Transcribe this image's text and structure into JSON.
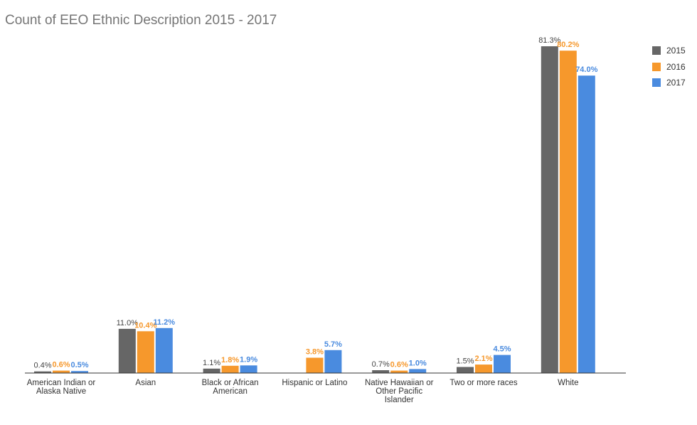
{
  "chart_data": {
    "type": "bar",
    "title": "Count of EEO Ethnic Description 2015 - 2017",
    "categories": [
      [
        "American Indian or",
        "Alaska Native"
      ],
      [
        "Asian"
      ],
      [
        "Black or African",
        "American"
      ],
      [
        "Hispanic or Latino"
      ],
      [
        "Native Hawaiian or",
        "Other Pacific",
        "Islander"
      ],
      [
        "Two or more races"
      ],
      [
        "White"
      ]
    ],
    "series": [
      {
        "name": "2015",
        "color": "#666666",
        "label_color": "#444444",
        "values": [
          0.4,
          11.0,
          1.1,
          null,
          0.7,
          1.5,
          81.3
        ],
        "labels": [
          "0.4%",
          "11.0%",
          "1.1%",
          "",
          "0.7%",
          "1.5%",
          "81.3%"
        ]
      },
      {
        "name": "2016",
        "color": "#f6982c",
        "label_color": "#f6982c",
        "values": [
          0.6,
          10.4,
          1.8,
          3.8,
          0.6,
          2.1,
          80.2
        ],
        "labels": [
          "0.6%",
          "10.4%",
          "1.8%",
          "3.8%",
          "0.6%",
          "2.1%",
          "80.2%"
        ]
      },
      {
        "name": "2017",
        "color": "#4a8bdf",
        "label_color": "#4a8bdf",
        "values": [
          0.5,
          11.2,
          1.9,
          5.7,
          1.0,
          4.5,
          74.0
        ],
        "labels": [
          "0.5%",
          "11.2%",
          "1.9%",
          "5.7%",
          "1.0%",
          "4.5%",
          "74.0%"
        ]
      }
    ],
    "xlabel": "",
    "ylabel": "",
    "ylim": [
      0,
      81.3
    ],
    "grid": false,
    "legend_position": "right"
  }
}
